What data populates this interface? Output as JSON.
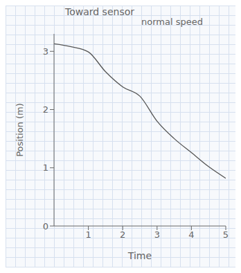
{
  "chart_data": {
    "type": "line",
    "title": "Toward sensor",
    "subtitle": "normal speed",
    "x_label": "Time",
    "y_label": "Position (m)",
    "x": [
      0,
      0.5,
      1,
      1.5,
      2,
      2.5,
      3,
      3.5,
      4,
      4.5,
      5
    ],
    "values": [
      3.13,
      3.08,
      2.99,
      2.65,
      2.39,
      2.23,
      1.8,
      1.5,
      1.26,
      1.02,
      0.82
    ],
    "color": "#555555",
    "xlim": [
      0,
      5
    ],
    "xticks": [
      1,
      2,
      3,
      4,
      5
    ],
    "ylim": [
      0,
      3.3
    ],
    "yticks": [
      0,
      1,
      2,
      3
    ],
    "grid": false
  }
}
